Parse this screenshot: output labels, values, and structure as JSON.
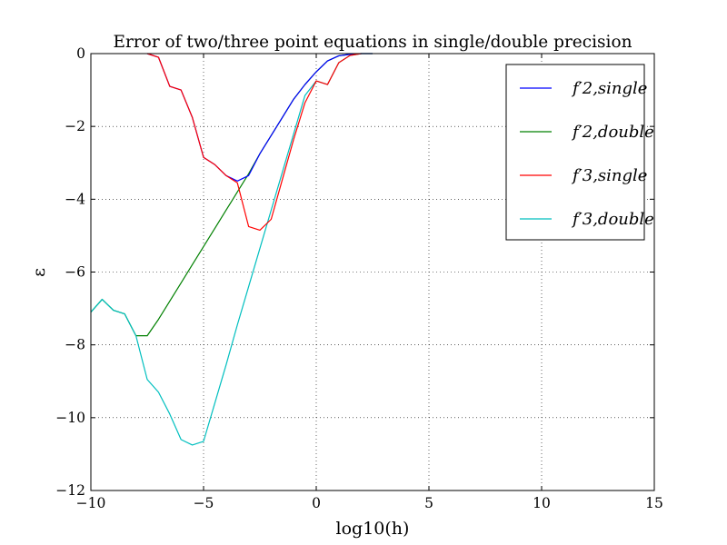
{
  "chart_data": {
    "type": "line",
    "title": "Error of two/three point equations in single/double precision",
    "xlabel": "log10(h)",
    "ylabel": "ε",
    "xlim": [
      -10,
      15
    ],
    "ylim": [
      -12,
      0
    ],
    "xticks": [
      -10,
      -5,
      0,
      5,
      10,
      15
    ],
    "yticks": [
      -12,
      -10,
      -8,
      -6,
      -4,
      -2,
      0
    ],
    "xtick_labels": [
      "−10",
      "−5",
      "0",
      "5",
      "10",
      "15"
    ],
    "ytick_labels": [
      "−12",
      "−10",
      "−8",
      "−6",
      "−4",
      "−2",
      "0"
    ],
    "grid": true,
    "legend_position": "top-right",
    "series": [
      {
        "name": "f′2,single",
        "color": "#0000ff",
        "x": [
          -7.5,
          -7.0,
          -6.5,
          -6.0,
          -5.5,
          -5.0,
          -4.5,
          -4.0,
          -3.5,
          -3.0,
          -2.5,
          -2.0,
          -1.5,
          -1.0,
          -0.5,
          0.0,
          0.5,
          1.0,
          1.5,
          2.0,
          2.5
        ],
        "y": [
          0.0,
          -0.1,
          -0.9,
          -1.0,
          -1.75,
          -2.85,
          -3.05,
          -3.35,
          -3.5,
          -3.35,
          -2.75,
          -2.25,
          -1.75,
          -1.25,
          -0.85,
          -0.5,
          -0.2,
          -0.06,
          -0.02,
          0.0,
          0.0
        ]
      },
      {
        "name": "f′2,double",
        "color": "#008000",
        "x": [
          -10.0,
          -9.5,
          -9.0,
          -8.5,
          -8.0,
          -7.5,
          -7.0,
          -6.5,
          -6.0,
          -5.5,
          -5.0,
          -4.5,
          -4.0,
          -3.5,
          -3.0,
          -2.5,
          -2.0,
          -1.5,
          -1.0,
          -0.5,
          0.0,
          0.5,
          1.0,
          1.5,
          2.0,
          2.5
        ],
        "y": [
          -7.1,
          -6.75,
          -7.05,
          -7.15,
          -7.75,
          -7.75,
          -7.3,
          -6.8,
          -6.3,
          -5.8,
          -5.3,
          -4.8,
          -4.3,
          -3.8,
          -3.3,
          -2.75,
          -2.25,
          -1.75,
          -1.25,
          -0.85,
          -0.5,
          -0.2,
          -0.06,
          -0.02,
          0.0,
          0.0
        ]
      },
      {
        "name": "f′3,single",
        "color": "#ff0000",
        "x": [
          -7.5,
          -7.0,
          -6.5,
          -6.0,
          -5.5,
          -5.0,
          -4.5,
          -4.0,
          -3.5,
          -3.0,
          -2.5,
          -2.0,
          -1.5,
          -1.0,
          -0.5,
          0.0,
          0.5,
          1.0,
          1.5,
          2.0
        ],
        "y": [
          0.0,
          -0.1,
          -0.9,
          -1.0,
          -1.75,
          -2.85,
          -3.05,
          -3.35,
          -3.55,
          -4.75,
          -4.85,
          -4.55,
          -3.45,
          -2.35,
          -1.35,
          -0.75,
          -0.85,
          -0.25,
          -0.05,
          0.0
        ]
      },
      {
        "name": "f′3,double",
        "color": "#00bfbf",
        "x": [
          -10.0,
          -9.5,
          -9.0,
          -8.5,
          -8.0,
          -7.5,
          -7.0,
          -6.5,
          -6.0,
          -5.5,
          -5.0,
          -4.5,
          -4.0,
          -3.5,
          -3.0,
          -2.5,
          -2.0,
          -1.5,
          -1.0,
          -0.5,
          0.0,
          0.5,
          1.0,
          1.5,
          2.0
        ],
        "y": [
          -7.1,
          -6.75,
          -7.05,
          -7.15,
          -7.75,
          -8.95,
          -9.3,
          -9.9,
          -10.6,
          -10.75,
          -10.65,
          -9.6,
          -8.55,
          -7.45,
          -6.4,
          -5.35,
          -4.3,
          -3.25,
          -2.2,
          -1.15,
          -0.75,
          -0.85,
          -0.25,
          -0.05,
          0.0
        ]
      }
    ]
  }
}
